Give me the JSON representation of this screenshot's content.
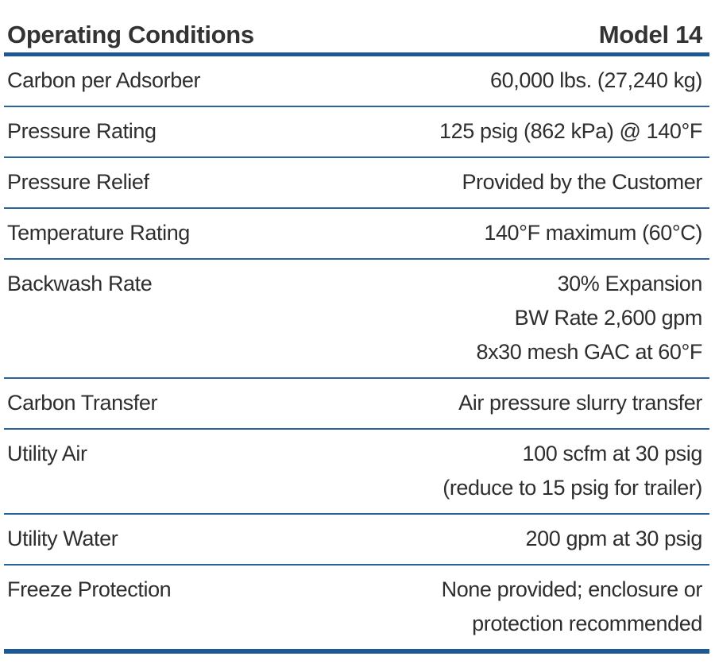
{
  "table": {
    "header": [
      "Operating Conditions",
      "Model 14"
    ],
    "rows": [
      [
        "Carbon per Adsorber",
        [
          "60,000 lbs. (27,240 kg)"
        ]
      ],
      [
        "Pressure Rating",
        [
          "125 psig (862 kPa) @ 140°F"
        ]
      ],
      [
        "Pressure Relief",
        [
          "Provided by the Customer"
        ]
      ],
      [
        "Temperature Rating",
        [
          "140°F maximum (60°C)"
        ]
      ],
      [
        "Backwash Rate",
        [
          "30% Expansion",
          "BW Rate 2,600 gpm",
          "8x30 mesh GAC at 60°F"
        ]
      ],
      [
        "Carbon Transfer",
        [
          "Air pressure slurry transfer"
        ]
      ],
      [
        "Utility Air",
        [
          "100 scfm at 30 psig",
          "(reduce to 15 psig for trailer)"
        ]
      ],
      [
        "Utility Water",
        [
          "200 gpm at 30 psig"
        ]
      ],
      [
        "Freeze Protection",
        [
          "None provided; enclosure or",
          "protection recommended"
        ]
      ]
    ]
  }
}
